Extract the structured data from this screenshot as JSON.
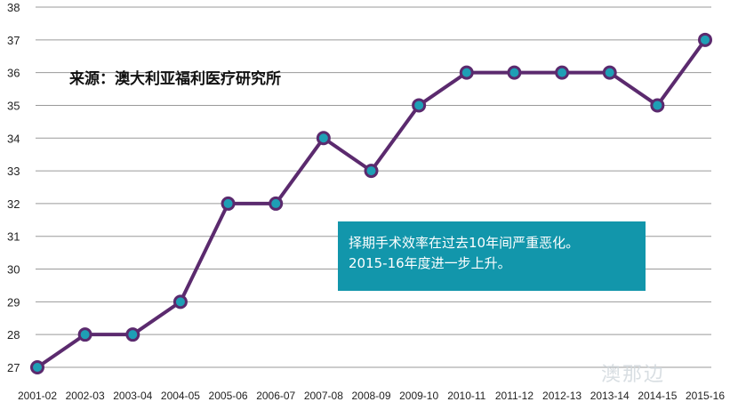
{
  "source_note": "来源：澳大利亚福利医疗研究所",
  "annotation": {
    "line1": "择期手术效率在过去10年间严重恶化。",
    "line2": "2015-16年度进一步上升。"
  },
  "watermark": "澳那边",
  "colors": {
    "line": "#5b2a6e",
    "marker": "#1e9fb5",
    "annotation_bg": "#1296ab"
  },
  "chart_data": {
    "type": "line",
    "categories": [
      "2001-02",
      "2002-03",
      "2003-04",
      "2004-05",
      "2005-06",
      "2006-07",
      "2007-08",
      "2008-09",
      "2009-10",
      "2010-11",
      "2011-12",
      "2012-13",
      "2013-14",
      "2014-15",
      "2015-16"
    ],
    "values": [
      27,
      28,
      28,
      29,
      32,
      32,
      34,
      33,
      35,
      36,
      36,
      36,
      36,
      35,
      37
    ],
    "ylim": [
      27,
      38
    ],
    "yticks": [
      27,
      28,
      29,
      30,
      31,
      32,
      33,
      34,
      35,
      36,
      37,
      38
    ],
    "grid": "horizontal",
    "title": "",
    "xlabel": "",
    "ylabel": ""
  }
}
